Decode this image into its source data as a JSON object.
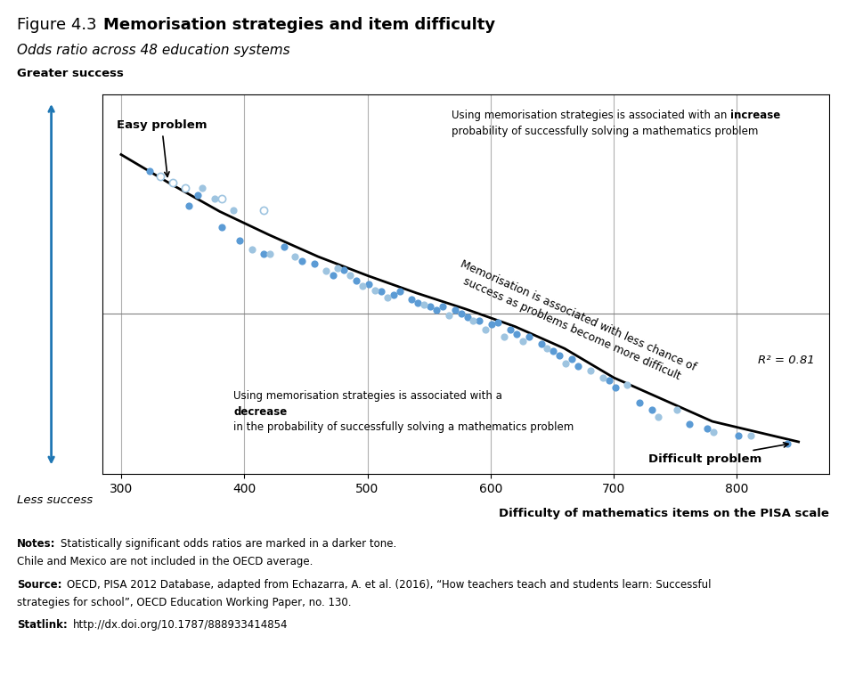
{
  "chart_data": {
    "type": "scatter",
    "title_label": "Figure 4.3",
    "title": "Memorisation strategies and item difficulty",
    "subtitle": "Odds ratio across 48 education systems",
    "xlabel": "Difficulty of mathematics items on the PISA scale",
    "ylabel_top": "Greater success",
    "ylabel_bottom": "Less success",
    "xlim": [
      285,
      875
    ],
    "ylim": [
      -0.22,
      0.3
    ],
    "xticks": [
      300,
      400,
      500,
      600,
      700,
      800
    ],
    "tick_labels": "x",
    "grid": "x",
    "reference_lines": [
      0
    ],
    "series": [
      {
        "color": "#5b9bd5",
        "marker": "circle",
        "x": [
          323,
          355,
          362,
          382,
          396,
          416,
          432,
          447,
          457,
          472,
          481,
          491,
          501,
          511,
          521,
          526,
          536,
          541,
          551,
          556,
          561,
          571,
          576,
          581,
          591,
          601,
          606,
          616,
          621,
          631,
          641,
          651,
          656,
          666,
          671,
          696,
          701,
          721,
          731,
          761,
          776,
          801,
          841
        ],
        "values": [
          0.195,
          0.148,
          0.162,
          0.118,
          0.1,
          0.082,
          0.092,
          0.072,
          0.068,
          0.052,
          0.06,
          0.045,
          0.04,
          0.03,
          0.025,
          0.03,
          0.02,
          0.015,
          0.01,
          0.005,
          0.01,
          0.005,
          0.0,
          -0.005,
          -0.01,
          -0.015,
          -0.012,
          -0.022,
          -0.028,
          -0.032,
          -0.042,
          -0.052,
          -0.058,
          -0.062,
          -0.072,
          -0.092,
          -0.102,
          -0.122,
          -0.132,
          -0.152,
          -0.158,
          -0.168,
          -0.178
        ]
      },
      {
        "color": "#9ec4e0",
        "marker": "circle",
        "x": [
          366,
          376,
          391,
          406,
          421,
          441,
          466,
          476,
          486,
          496,
          506,
          516,
          546,
          566,
          586,
          596,
          611,
          626,
          646,
          661,
          681,
          691,
          711,
          736,
          751,
          781,
          811
        ],
        "values": [
          0.172,
          0.158,
          0.142,
          0.088,
          0.082,
          0.078,
          0.058,
          0.062,
          0.052,
          0.038,
          0.032,
          0.022,
          0.012,
          -0.002,
          -0.01,
          -0.022,
          -0.032,
          -0.038,
          -0.048,
          -0.068,
          -0.078,
          -0.088,
          -0.098,
          -0.142,
          -0.132,
          -0.162,
          -0.168
        ]
      },
      {
        "color": "#9ec4e0",
        "marker": "open_circle",
        "x": [
          332,
          342,
          352,
          382,
          416
        ],
        "values": [
          0.188,
          0.18,
          0.172,
          0.158,
          0.142
        ]
      },
      {
        "type": "line",
        "color": "#000000",
        "x": [
          300,
          340,
          380,
          420,
          460,
          500,
          540,
          580,
          620,
          660,
          700,
          740,
          780,
          820,
          850
        ],
        "values": [
          0.218,
          0.178,
          0.14,
          0.108,
          0.078,
          0.052,
          0.028,
          0.006,
          -0.018,
          -0.048,
          -0.088,
          -0.118,
          -0.148,
          -0.164,
          -0.176
        ]
      }
    ],
    "annotations": [
      {
        "text": "Easy problem",
        "x": 338,
        "y": 0.182
      },
      {
        "text": "Difficult problem",
        "x": 845,
        "y": -0.178
      }
    ],
    "r2_label": "R² = 0.81",
    "diagonal_text": "Memorisation is associated with less chance of\nsuccess as problems become more difficult",
    "upper_text": [
      "Using memorisation strategies is associated with an",
      "increase",
      "probability of successfully solving a mathematics problem"
    ],
    "lower_text": [
      "Using memorisation strategies is associated with a",
      "decrease",
      "in the probability of successfully solving a mathematics problem"
    ],
    "notes": [
      {
        "label": "Notes:",
        "lines": [
          "Statistically significant odds ratios are marked in a darker tone.",
          "Chile and Mexico are not included in the OECD average."
        ]
      },
      {
        "label": "Source:",
        "lines": [
          "OECD, PISA 2012 Database, adapted from Echazarra, A. et al. (2016), “How teachers teach and students learn: Successful",
          "strategies for school”, OECD Education Working Paper, no. 130."
        ]
      },
      {
        "label": "Statlink:",
        "lines": [
          "http://dx.doi.org/10.1787/888933414854"
        ]
      }
    ]
  }
}
